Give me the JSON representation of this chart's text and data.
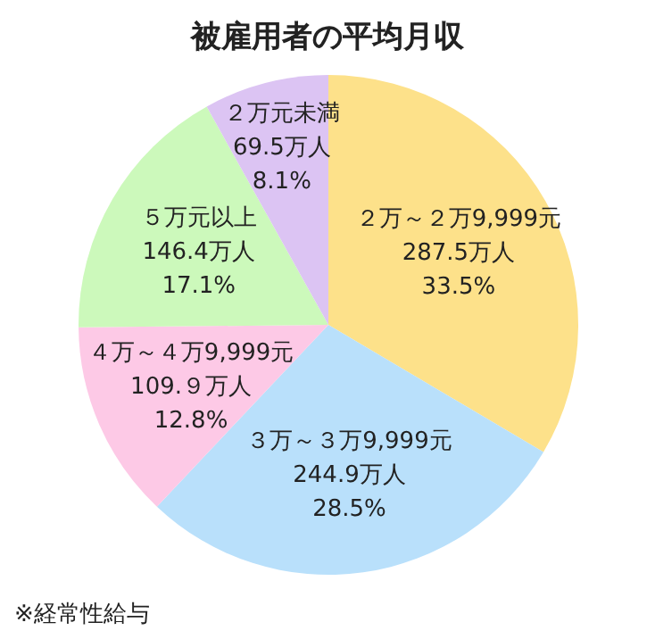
{
  "chart_data": {
    "type": "pie",
    "title": "被雇用者の平均月収",
    "categories": [
      "２万～２万9,999元",
      "３万～３万9,999元",
      "４万～４万9,999元",
      "５万元以上",
      "２万元未満"
    ],
    "values": [
      287.5,
      244.9,
      109.9,
      146.4,
      69.5
    ],
    "value_labels": [
      "287.5万人\n33.5%",
      "244.9万人\n28.5%",
      "109.９万人\n12.8%",
      "146.4万人\n17.1%",
      "69.5万人\n8.1%"
    ],
    "colors": [
      "#fde18a",
      "#b9e0fb",
      "#fdc9e6",
      "#ccf9bb",
      "#dcc4f3"
    ],
    "annotations": [
      "※経常性給与"
    ]
  }
}
